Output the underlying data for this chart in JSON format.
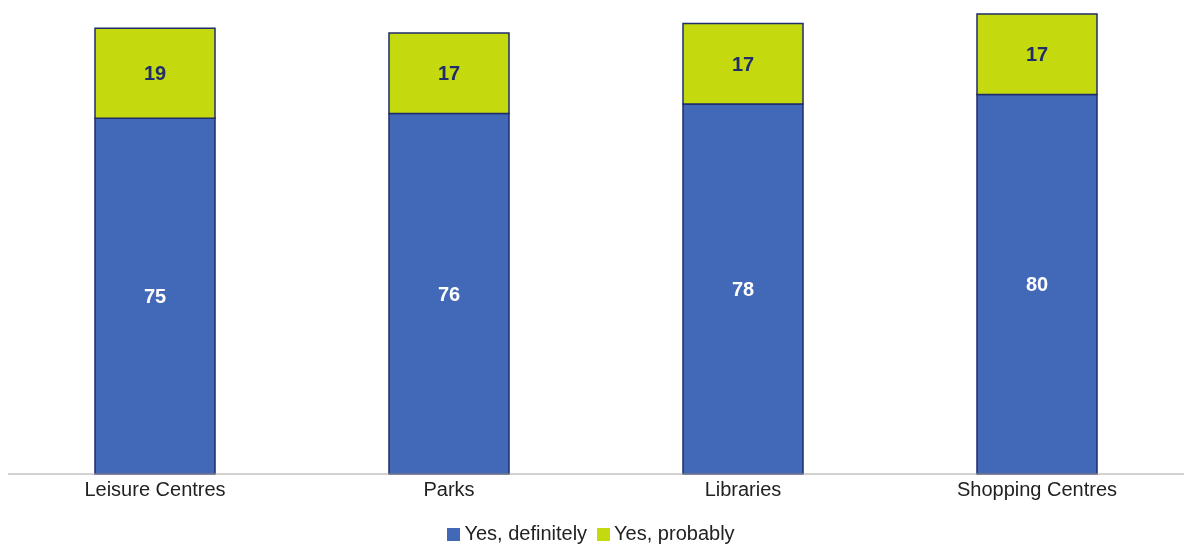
{
  "chart_data": {
    "type": "bar",
    "stacked": true,
    "categories": [
      "Leisure Centres",
      "Parks",
      "Libraries",
      "Shopping Centres"
    ],
    "series": [
      {
        "name": "Yes, definitely",
        "color": "#4169b8",
        "values": [
          75,
          76,
          78,
          80
        ]
      },
      {
        "name": "Yes, probably",
        "color": "#c5d90f",
        "values": [
          19,
          17,
          17,
          17
        ]
      }
    ],
    "data_labels": true,
    "legend": "bottom",
    "grid": false
  }
}
